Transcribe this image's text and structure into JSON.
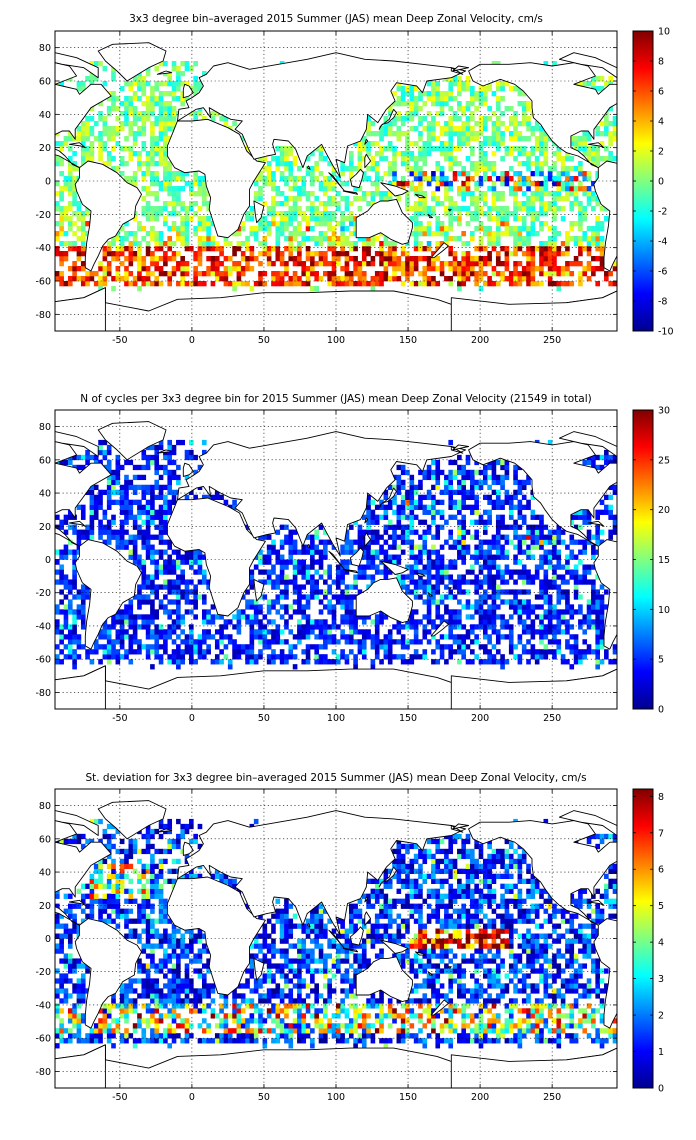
{
  "chart_data": [
    {
      "type": "heatmap",
      "title": "3x3 degree bin–averaged 2015 Summer (JAS) mean Deep Zonal Velocity, cm/s",
      "xlim": [
        -95,
        295
      ],
      "ylim": [
        -90,
        90
      ],
      "xticks": [
        -50,
        0,
        50,
        100,
        150,
        200,
        250
      ],
      "yticks": [
        -80,
        -60,
        -40,
        -20,
        0,
        20,
        40,
        60,
        80
      ],
      "colorbar": {
        "min": -10,
        "max": 10,
        "ticks": [
          -10,
          -8,
          -6,
          -4,
          -2,
          0,
          2,
          4,
          6,
          8,
          10
        ]
      },
      "grid": true,
      "bin_size_deg": 3,
      "dominant_values": "mostly -2 to 2; strong eastward 6-10 in Antarctic Circumpolar Current band near -45 to -60; mixed -8 to 8 along equator in Pacific"
    },
    {
      "type": "heatmap",
      "title": "N of cycles per 3x3 degree bin for 2015 Summer (JAS) mean Deep Zonal Velocity (21549 in total)",
      "xlim": [
        -95,
        295
      ],
      "ylim": [
        -90,
        90
      ],
      "xticks": [
        -50,
        0,
        50,
        100,
        150,
        200,
        250
      ],
      "yticks": [
        -80,
        -60,
        -40,
        -20,
        0,
        20,
        40,
        60,
        80
      ],
      "colorbar": {
        "min": 0,
        "max": 30,
        "ticks": [
          0,
          5,
          10,
          15,
          20,
          25,
          30
        ]
      },
      "grid": true,
      "bin_size_deg": 3,
      "total_cycles": 21549,
      "dominant_values": "mostly 1-8 cycles per bin; scattered higher counts 10-25 in North Pacific and equatorial Pacific"
    },
    {
      "type": "heatmap",
      "title": "St. deviation for 3x3 degree bin–averaged 2015 Summer (JAS) mean Deep Zonal Velocity, cm/s",
      "xlim": [
        -95,
        295
      ],
      "ylim": [
        -90,
        90
      ],
      "xticks": [
        -50,
        0,
        50,
        100,
        150,
        200,
        250
      ],
      "yticks": [
        -80,
        -60,
        -40,
        -20,
        0,
        20,
        40,
        60,
        80
      ],
      "colorbar": {
        "min": 0,
        "max": 8.2,
        "ticks": [
          0,
          1,
          2,
          3,
          4,
          5,
          6,
          7,
          8
        ]
      },
      "grid": true,
      "bin_size_deg": 3,
      "dominant_values": "mostly 0-2; high 6-8 along equatorial Pacific (160-200E) and Southern Ocean near -45 to -55"
    }
  ]
}
